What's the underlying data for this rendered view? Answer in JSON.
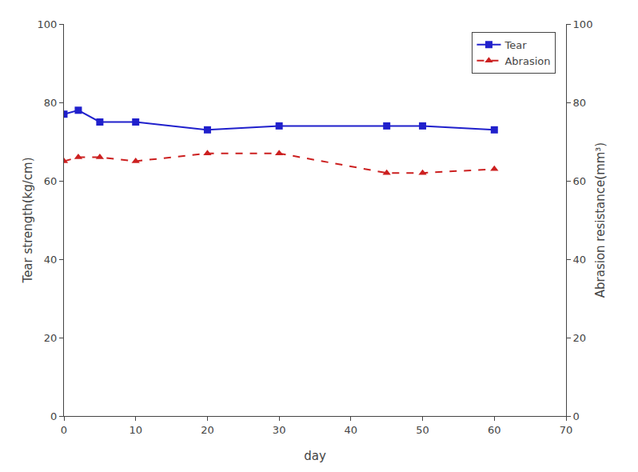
{
  "chart_data": {
    "type": "line",
    "x": [
      0,
      2,
      5,
      10,
      20,
      30,
      45,
      50,
      60
    ],
    "series": [
      {
        "name": "Tear",
        "color": "#2020cc",
        "marker": "square",
        "line_style": "solid",
        "values": [
          77,
          78,
          75,
          75,
          73,
          74,
          74,
          74,
          73
        ]
      },
      {
        "name": "Abrasion",
        "color": "#cc2020",
        "marker": "triangle-up",
        "line_style": "dash",
        "axis": "y2",
        "values": [
          65,
          66,
          66,
          65,
          67,
          67,
          62,
          62,
          63
        ]
      }
    ],
    "xlabel": "day",
    "ylabel": "Tear strength(kg/cm)",
    "y2label": "Abrasion resistance(mm³)",
    "xlim": [
      0,
      70
    ],
    "xticks": [
      0,
      10,
      20,
      30,
      40,
      50,
      60,
      70
    ],
    "ylim": [
      0,
      100
    ],
    "yticks": [
      0,
      20,
      40,
      60,
      80,
      100
    ],
    "y2lim": [
      0,
      100
    ],
    "y2ticks": [
      0,
      20,
      40,
      60,
      80,
      100
    ],
    "grid": false,
    "legend": "upper right"
  }
}
